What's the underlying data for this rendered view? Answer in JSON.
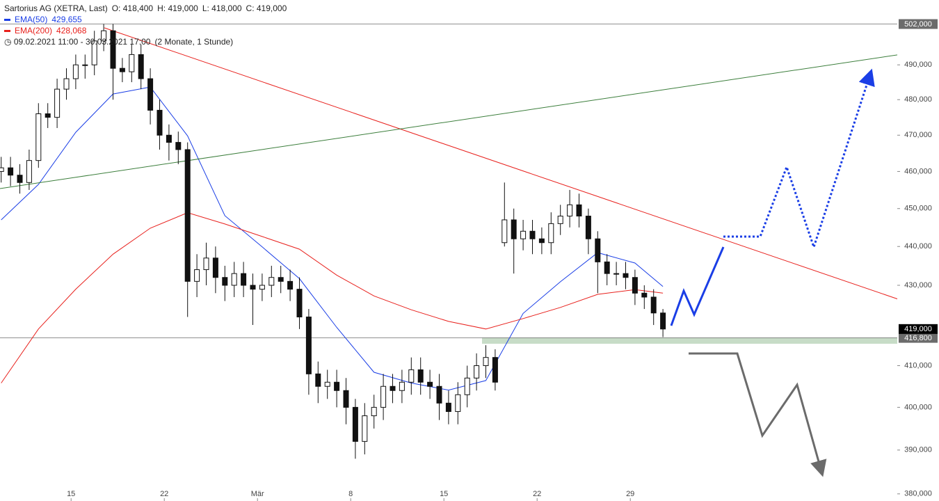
{
  "chart_data": {
    "type": "candlestick",
    "title": "Sartorius AG (XETRA, Last)",
    "ohlc_labels": [
      "O: 418,400",
      "H: 419,000",
      "L: 418,000",
      "C: 419,000"
    ],
    "period": "09.02.2021 11:00 - 30.03.2021 17:00",
    "span": "(2 Monate, 1 Stunde)",
    "categories": [
      null,
      null,
      null,
      null,
      null,
      null,
      null,
      null,
      "15",
      null,
      null,
      null,
      null,
      null,
      null,
      null,
      null,
      null,
      "22",
      null,
      null,
      null,
      null,
      null,
      null,
      null,
      null,
      null,
      "Mär",
      null,
      null,
      null,
      null,
      null,
      null,
      null,
      null,
      null,
      "8",
      null,
      null,
      null,
      null,
      null,
      null,
      null,
      null,
      null,
      "15",
      null,
      null,
      null,
      null,
      null,
      null,
      null,
      null,
      null,
      "22",
      null,
      null,
      null,
      null,
      null,
      null,
      null,
      null,
      null,
      "29",
      null,
      null,
      null
    ],
    "open": [
      460,
      461,
      459,
      457,
      463,
      476,
      475,
      483,
      486,
      490,
      490,
      497,
      500,
      489,
      488,
      493,
      486,
      477,
      470,
      468,
      466,
      431,
      434,
      437,
      432,
      430,
      433,
      430,
      429,
      430,
      432,
      431,
      429,
      422,
      408,
      405,
      406,
      404,
      400,
      392,
      398,
      400,
      405,
      404,
      406,
      409,
      406,
      405,
      401,
      399,
      403,
      407,
      410,
      412,
      441,
      447,
      442,
      444,
      442,
      441,
      446,
      448,
      451,
      448,
      442,
      436,
      433,
      433,
      432,
      428,
      427,
      423
    ],
    "high": [
      464,
      464,
      462,
      466,
      479,
      479,
      486,
      489,
      493,
      493,
      500,
      502,
      502,
      492,
      496,
      496,
      489,
      480,
      473,
      471,
      468,
      438,
      441,
      440,
      435,
      436,
      436,
      433,
      433,
      435,
      435,
      434,
      432,
      424,
      411,
      409,
      409,
      407,
      402,
      401,
      403,
      408,
      408,
      409,
      412,
      412,
      409,
      408,
      404,
      406,
      410,
      413,
      415,
      414,
      457,
      450,
      447,
      447,
      445,
      449,
      451,
      455,
      454,
      450,
      444,
      438,
      436,
      436,
      434,
      430,
      429,
      424
    ],
    "low": [
      457,
      456,
      454,
      455,
      461,
      472,
      472,
      480,
      483,
      486,
      487,
      494,
      480,
      485,
      485,
      483,
      473,
      466,
      463,
      462,
      422,
      427,
      430,
      428,
      426,
      427,
      427,
      420,
      426,
      427,
      428,
      426,
      419,
      403,
      401,
      402,
      400,
      396,
      388,
      389,
      395,
      397,
      401,
      401,
      403,
      403,
      402,
      397,
      396,
      396,
      400,
      404,
      407,
      404,
      440,
      433,
      439,
      438,
      438,
      438,
      443,
      445,
      445,
      438,
      428,
      430,
      430,
      429,
      425,
      424,
      420,
      417
    ],
    "close": [
      461,
      459,
      457,
      463,
      476,
      475,
      483,
      486,
      490,
      490,
      497,
      500,
      489,
      488,
      493,
      486,
      477,
      470,
      468,
      466,
      431,
      434,
      437,
      432,
      430,
      433,
      430,
      429,
      430,
      432,
      431,
      429,
      422,
      408,
      405,
      406,
      404,
      400,
      392,
      398,
      400,
      405,
      404,
      406,
      409,
      406,
      405,
      401,
      399,
      403,
      407,
      410,
      412,
      406,
      447,
      442,
      444,
      442,
      441,
      446,
      448,
      451,
      448,
      442,
      436,
      433,
      433,
      432,
      428,
      427,
      423,
      419
    ],
    "series": [
      {
        "name": "EMA(50)",
        "color": "#1a3ee6",
        "legend_value": "429,655",
        "x": [
          0,
          4,
          8,
          12,
          16,
          20,
          24,
          28,
          32,
          36,
          40,
          44,
          48,
          52,
          56,
          60,
          64,
          68,
          71
        ],
        "values": [
          447.0,
          456.5,
          470.8,
          481.6,
          483.6,
          469.8,
          448.1,
          439.9,
          431.7,
          419.4,
          408.4,
          405.8,
          404.1,
          406.4,
          422.9,
          430.9,
          438.4,
          435.7,
          429.7
        ]
      },
      {
        "name": "EMA(200)",
        "color": "#e8201c",
        "legend_value": "428,068",
        "x": [
          0,
          4,
          8,
          12,
          16,
          20,
          24,
          28,
          32,
          36,
          40,
          44,
          48,
          52,
          56,
          60,
          64,
          68,
          71
        ],
        "values": [
          405.8,
          419.0,
          429.0,
          438.0,
          444.8,
          448.9,
          445.9,
          442.6,
          439.3,
          432.6,
          427.3,
          423.8,
          420.9,
          419.0,
          421.6,
          424.4,
          427.7,
          428.9,
          428.0
        ]
      }
    ],
    "price_lines": [
      {
        "value": 502,
        "label": "502,000",
        "color": "#6b6b6b"
      },
      {
        "value": 416.8,
        "label": "416,800",
        "color": "#6b6b6b"
      },
      {
        "value": 419,
        "label": "419,000",
        "color": "#000000"
      }
    ],
    "ylim": [
      378.4,
      509.2
    ],
    "log_scale": true,
    "yticks": [
      {
        "value": 380,
        "label": "380,000"
      },
      {
        "value": 390,
        "label": "390,000"
      },
      {
        "value": 400,
        "label": "400,000"
      },
      {
        "value": 410,
        "label": "410,000"
      },
      {
        "value": 430,
        "label": "430,000"
      },
      {
        "value": 440,
        "label": "440,000"
      },
      {
        "value": 450,
        "label": "450,000"
      },
      {
        "value": 460,
        "label": "460,000"
      },
      {
        "value": 470,
        "label": "470,000"
      },
      {
        "value": 480,
        "label": "480,000"
      },
      {
        "value": 490,
        "label": "490,000"
      }
    ]
  }
}
